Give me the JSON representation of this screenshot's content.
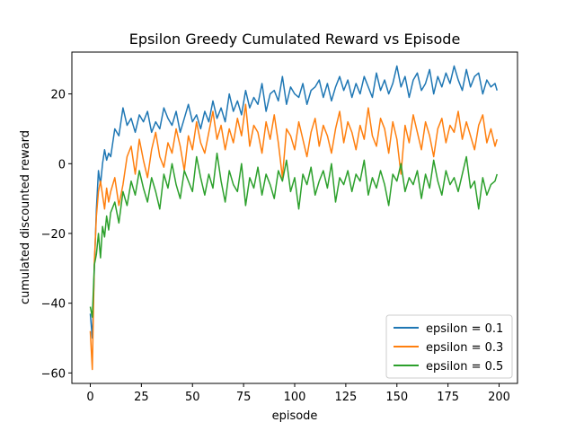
{
  "chart_data": {
    "type": "line",
    "title": "Epsilon Greedy Cumulated Reward vs Episode",
    "xlabel": "episode",
    "ylabel": "cumulated discounted reward",
    "xlim": [
      -9,
      209
    ],
    "ylim": [
      -63,
      32
    ],
    "xticks": [
      0,
      25,
      50,
      75,
      100,
      125,
      150,
      175,
      200
    ],
    "yticks": [
      -60,
      -40,
      -20,
      0,
      20
    ],
    "grid": false,
    "legend_position": "lower-right",
    "series": [
      {
        "name": "epsilon = 0.1",
        "color": "#1f77b4",
        "x": [
          0,
          1,
          2,
          3,
          4,
          5,
          6,
          7,
          8,
          9,
          10,
          12,
          14,
          16,
          18,
          20,
          22,
          24,
          26,
          28,
          30,
          32,
          34,
          36,
          38,
          40,
          42,
          44,
          46,
          48,
          50,
          52,
          54,
          56,
          58,
          60,
          62,
          64,
          66,
          68,
          70,
          72,
          74,
          76,
          78,
          80,
          82,
          84,
          86,
          88,
          90,
          92,
          94,
          96,
          98,
          100,
          102,
          104,
          106,
          108,
          110,
          112,
          114,
          116,
          118,
          120,
          122,
          124,
          126,
          128,
          130,
          132,
          134,
          136,
          138,
          140,
          142,
          144,
          146,
          148,
          150,
          152,
          154,
          156,
          158,
          160,
          162,
          164,
          166,
          168,
          170,
          172,
          174,
          176,
          178,
          180,
          182,
          184,
          186,
          188,
          190,
          192,
          194,
          196,
          198,
          199
        ],
        "values": [
          -43,
          -50,
          -30,
          -13,
          -2,
          -6,
          0,
          4,
          1,
          3,
          2,
          10,
          8,
          16,
          11,
          13,
          9,
          14,
          12,
          15,
          9,
          12,
          10,
          16,
          13,
          11,
          15,
          9,
          13,
          17,
          12,
          14,
          10,
          15,
          12,
          18,
          13,
          16,
          12,
          20,
          15,
          18,
          14,
          21,
          16,
          19,
          17,
          23,
          15,
          20,
          21,
          18,
          25,
          17,
          22,
          20,
          19,
          23,
          17,
          21,
          22,
          24,
          19,
          23,
          18,
          22,
          25,
          21,
          24,
          19,
          23,
          20,
          25,
          22,
          19,
          26,
          21,
          24,
          20,
          23,
          28,
          22,
          25,
          19,
          24,
          26,
          21,
          23,
          27,
          20,
          25,
          22,
          26,
          23,
          28,
          24,
          21,
          27,
          22,
          25,
          26,
          20,
          24,
          22,
          23,
          21
        ]
      },
      {
        "name": "epsilon = 0.3",
        "color": "#ff7f0e",
        "x": [
          0,
          1,
          2,
          3,
          4,
          5,
          6,
          7,
          8,
          9,
          10,
          12,
          14,
          16,
          18,
          20,
          22,
          24,
          26,
          28,
          30,
          32,
          34,
          36,
          38,
          40,
          42,
          44,
          46,
          48,
          50,
          52,
          54,
          56,
          58,
          60,
          62,
          64,
          66,
          68,
          70,
          72,
          74,
          76,
          78,
          80,
          82,
          84,
          86,
          88,
          90,
          92,
          94,
          96,
          98,
          100,
          102,
          104,
          106,
          108,
          110,
          112,
          114,
          116,
          118,
          120,
          122,
          124,
          126,
          128,
          130,
          132,
          134,
          136,
          138,
          140,
          142,
          144,
          146,
          148,
          150,
          152,
          154,
          156,
          158,
          160,
          162,
          164,
          166,
          168,
          170,
          172,
          174,
          176,
          178,
          180,
          182,
          184,
          186,
          188,
          190,
          192,
          194,
          196,
          198,
          199
        ],
        "values": [
          -48,
          -59,
          -28,
          -15,
          -8,
          -5,
          -9,
          -13,
          -7,
          -11,
          -8,
          -4,
          -12,
          -6,
          2,
          5,
          -3,
          7,
          1,
          -4,
          4,
          9,
          2,
          -1,
          6,
          3,
          10,
          5,
          -2,
          8,
          4,
          12,
          6,
          3,
          9,
          15,
          7,
          11,
          4,
          10,
          6,
          13,
          8,
          17,
          5,
          11,
          9,
          3,
          12,
          7,
          14,
          6,
          -4,
          10,
          8,
          4,
          12,
          7,
          2,
          9,
          13,
          5,
          11,
          8,
          3,
          10,
          15,
          6,
          12,
          9,
          4,
          11,
          7,
          16,
          8,
          5,
          13,
          10,
          3,
          12,
          7,
          -3,
          11,
          6,
          14,
          9,
          4,
          12,
          8,
          2,
          10,
          13,
          6,
          11,
          9,
          15,
          7,
          12,
          8,
          4,
          11,
          14,
          6,
          10,
          5,
          7
        ]
      },
      {
        "name": "epsilon = 0.5",
        "color": "#2ca02c",
        "x": [
          0,
          1,
          2,
          3,
          4,
          5,
          6,
          7,
          8,
          9,
          10,
          12,
          14,
          16,
          18,
          20,
          22,
          24,
          26,
          28,
          30,
          32,
          34,
          36,
          38,
          40,
          42,
          44,
          46,
          48,
          50,
          52,
          54,
          56,
          58,
          60,
          62,
          64,
          66,
          68,
          70,
          72,
          74,
          76,
          78,
          80,
          82,
          84,
          86,
          88,
          90,
          92,
          94,
          96,
          98,
          100,
          102,
          104,
          106,
          108,
          110,
          112,
          114,
          116,
          118,
          120,
          122,
          124,
          126,
          128,
          130,
          132,
          134,
          136,
          138,
          140,
          142,
          144,
          146,
          148,
          150,
          152,
          154,
          156,
          158,
          160,
          162,
          164,
          166,
          168,
          170,
          172,
          174,
          176,
          178,
          180,
          182,
          184,
          186,
          188,
          190,
          192,
          194,
          196,
          198,
          199
        ],
        "values": [
          -41,
          -44,
          -29,
          -26,
          -20,
          -27,
          -18,
          -21,
          -15,
          -19,
          -14,
          -11,
          -17,
          -8,
          -12,
          -5,
          -9,
          -2,
          -7,
          -11,
          -4,
          -8,
          -13,
          -3,
          -7,
          0,
          -6,
          -10,
          -2,
          -5,
          -8,
          2,
          -4,
          -9,
          -3,
          -7,
          3,
          -5,
          -11,
          -2,
          -6,
          -8,
          0,
          -12,
          -4,
          -7,
          -1,
          -9,
          -3,
          -6,
          -10,
          -2,
          -5,
          1,
          -8,
          -4,
          -13,
          -3,
          -6,
          -1,
          -9,
          -5,
          -2,
          -7,
          0,
          -11,
          -4,
          -6,
          -2,
          -8,
          -3,
          -5,
          1,
          -9,
          -4,
          -7,
          -2,
          -6,
          -12,
          -3,
          -5,
          0,
          -8,
          -4,
          -6,
          -2,
          -10,
          -3,
          -7,
          1,
          -5,
          -9,
          -2,
          -6,
          -4,
          -8,
          -3,
          2,
          -7,
          -5,
          -13,
          -4,
          -9,
          -6,
          -5,
          -3
        ]
      }
    ]
  }
}
